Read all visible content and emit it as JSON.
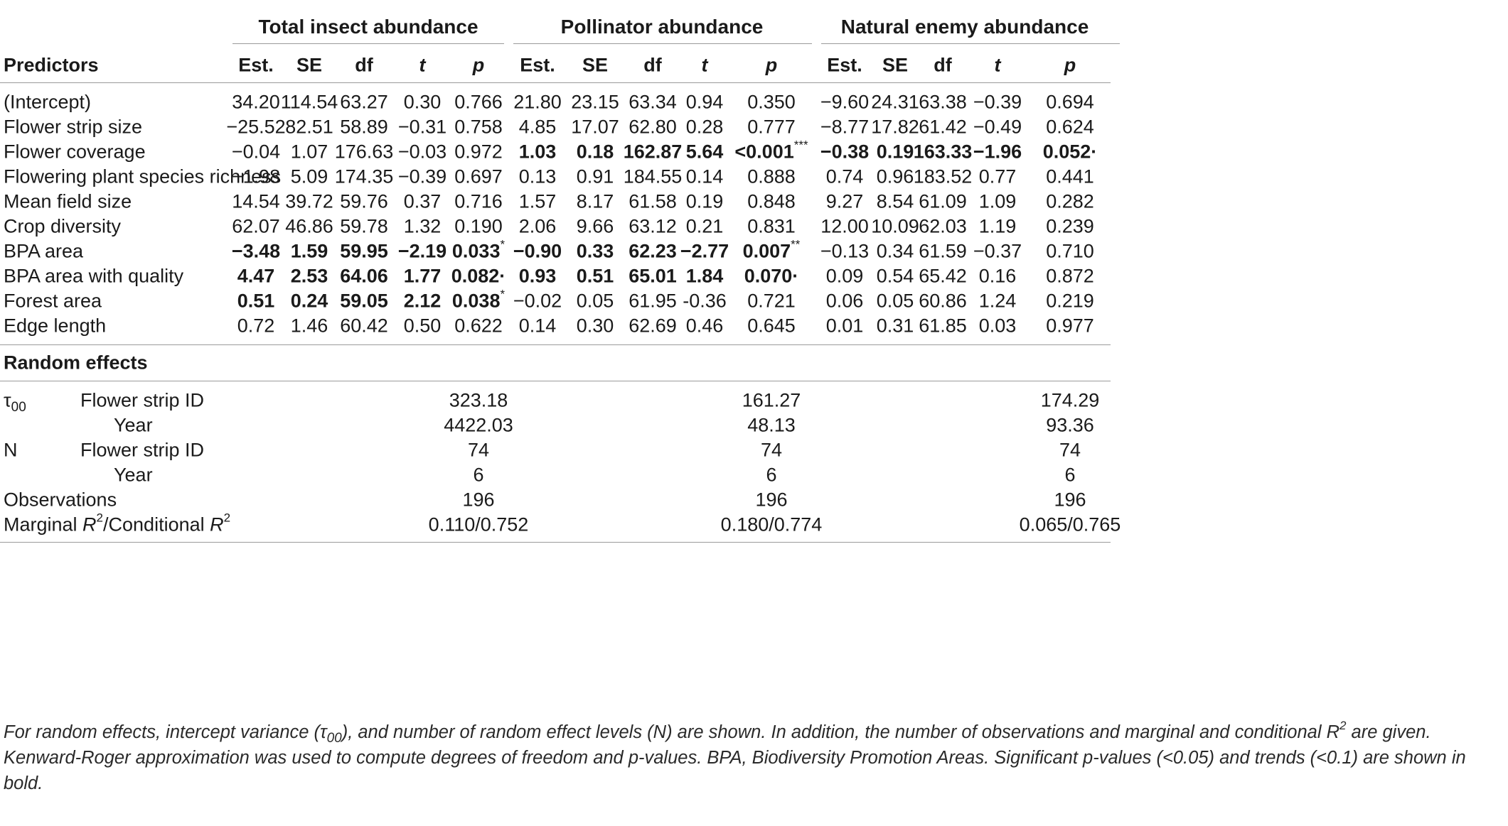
{
  "groups": [
    "Total insect abundance",
    "Pollinator abundance",
    "Natural enemy abundance"
  ],
  "header": {
    "predictors": "Predictors",
    "cols": [
      "Est.",
      "SE",
      "df",
      "t",
      "p",
      "Est.",
      "SE",
      "df",
      "t",
      "p",
      "Est.",
      "SE",
      "df",
      "t",
      "p"
    ]
  },
  "rows": [
    {
      "label": "(Intercept)",
      "cells": [
        {
          "v": "34.20"
        },
        {
          "v": "114.54"
        },
        {
          "v": "63.27"
        },
        {
          "v": "0.30"
        },
        {
          "v": "0.766"
        },
        {
          "v": "21.80"
        },
        {
          "v": "23.15"
        },
        {
          "v": "63.34"
        },
        {
          "v": "0.94"
        },
        {
          "v": "0.350"
        },
        {
          "v": "−9.60"
        },
        {
          "v": "24.31"
        },
        {
          "v": "63.38"
        },
        {
          "v": "−0.39"
        },
        {
          "v": "0.694"
        }
      ]
    },
    {
      "label": "Flower strip size",
      "cells": [
        {
          "v": "−25.52"
        },
        {
          "v": "82.51"
        },
        {
          "v": "58.89"
        },
        {
          "v": "−0.31"
        },
        {
          "v": "0.758"
        },
        {
          "v": "4.85"
        },
        {
          "v": "17.07"
        },
        {
          "v": "62.80"
        },
        {
          "v": "0.28"
        },
        {
          "v": "0.777"
        },
        {
          "v": "−8.77"
        },
        {
          "v": "17.82"
        },
        {
          "v": "61.42"
        },
        {
          "v": "−0.49"
        },
        {
          "v": "0.624"
        }
      ]
    },
    {
      "label": "Flower coverage",
      "cells": [
        {
          "v": "−0.04"
        },
        {
          "v": "1.07"
        },
        {
          "v": "176.63"
        },
        {
          "v": "−0.03"
        },
        {
          "v": "0.972"
        },
        {
          "v": "1.03",
          "b": true
        },
        {
          "v": "0.18",
          "b": true
        },
        {
          "v": "162.87",
          "b": true
        },
        {
          "v": "5.64",
          "b": true
        },
        {
          "v": "<0.001",
          "b": true,
          "sup": "***"
        },
        {
          "v": "−0.38",
          "b": true
        },
        {
          "v": "0.19",
          "b": true
        },
        {
          "v": "163.33",
          "b": true
        },
        {
          "v": "−1.96",
          "b": true
        },
        {
          "v": "0.052·",
          "b": true
        }
      ]
    },
    {
      "label": "Flowering plant species richness",
      "cells": [
        {
          "v": "−1.98"
        },
        {
          "v": "5.09"
        },
        {
          "v": "174.35"
        },
        {
          "v": "−0.39"
        },
        {
          "v": "0.697"
        },
        {
          "v": "0.13"
        },
        {
          "v": "0.91"
        },
        {
          "v": "184.55"
        },
        {
          "v": "0.14"
        },
        {
          "v": "0.888"
        },
        {
          "v": "0.74"
        },
        {
          "v": "0.96"
        },
        {
          "v": "183.52"
        },
        {
          "v": "0.77"
        },
        {
          "v": "0.441"
        }
      ]
    },
    {
      "label": "Mean field size",
      "cells": [
        {
          "v": "14.54"
        },
        {
          "v": "39.72"
        },
        {
          "v": "59.76"
        },
        {
          "v": "0.37"
        },
        {
          "v": "0.716"
        },
        {
          "v": "1.57"
        },
        {
          "v": "8.17"
        },
        {
          "v": "61.58"
        },
        {
          "v": "0.19"
        },
        {
          "v": "0.848"
        },
        {
          "v": "9.27"
        },
        {
          "v": "8.54"
        },
        {
          "v": "61.09"
        },
        {
          "v": "1.09"
        },
        {
          "v": "0.282"
        }
      ]
    },
    {
      "label": "Crop diversity",
      "cells": [
        {
          "v": "62.07"
        },
        {
          "v": "46.86"
        },
        {
          "v": "59.78"
        },
        {
          "v": "1.32"
        },
        {
          "v": "0.190"
        },
        {
          "v": "2.06"
        },
        {
          "v": "9.66"
        },
        {
          "v": "63.12"
        },
        {
          "v": "0.21"
        },
        {
          "v": "0.831"
        },
        {
          "v": "12.00"
        },
        {
          "v": "10.09"
        },
        {
          "v": "62.03"
        },
        {
          "v": "1.19"
        },
        {
          "v": "0.239"
        }
      ]
    },
    {
      "label": "BPA area",
      "cells": [
        {
          "v": "−3.48",
          "b": true
        },
        {
          "v": "1.59",
          "b": true
        },
        {
          "v": "59.95",
          "b": true
        },
        {
          "v": "−2.19",
          "b": true
        },
        {
          "v": "0.033",
          "b": true,
          "sup": "*"
        },
        {
          "v": "−0.90",
          "b": true
        },
        {
          "v": "0.33",
          "b": true
        },
        {
          "v": "62.23",
          "b": true
        },
        {
          "v": "−2.77",
          "b": true
        },
        {
          "v": "0.007",
          "b": true,
          "sup": "**"
        },
        {
          "v": "−0.13"
        },
        {
          "v": "0.34"
        },
        {
          "v": "61.59"
        },
        {
          "v": "−0.37"
        },
        {
          "v": "0.710"
        }
      ]
    },
    {
      "label": "BPA area with quality",
      "cells": [
        {
          "v": "4.47",
          "b": true
        },
        {
          "v": "2.53",
          "b": true
        },
        {
          "v": "64.06",
          "b": true
        },
        {
          "v": "1.77",
          "b": true
        },
        {
          "v": "0.082·",
          "b": true
        },
        {
          "v": "0.93",
          "b": true
        },
        {
          "v": "0.51",
          "b": true
        },
        {
          "v": "65.01",
          "b": true
        },
        {
          "v": "1.84",
          "b": true
        },
        {
          "v": "0.070·",
          "b": true
        },
        {
          "v": "0.09"
        },
        {
          "v": "0.54"
        },
        {
          "v": "65.42"
        },
        {
          "v": "0.16"
        },
        {
          "v": "0.872"
        }
      ]
    },
    {
      "label": "Forest area",
      "cells": [
        {
          "v": "0.51",
          "b": true
        },
        {
          "v": "0.24",
          "b": true
        },
        {
          "v": "59.05",
          "b": true
        },
        {
          "v": "2.12",
          "b": true
        },
        {
          "v": "0.038",
          "b": true,
          "sup": "*"
        },
        {
          "v": "−0.02"
        },
        {
          "v": "0.05"
        },
        {
          "v": "61.95"
        },
        {
          "v": "-0.36"
        },
        {
          "v": "0.721"
        },
        {
          "v": "0.06"
        },
        {
          "v": "0.05"
        },
        {
          "v": "60.86"
        },
        {
          "v": "1.24"
        },
        {
          "v": "0.219"
        }
      ]
    },
    {
      "label": "Edge length",
      "cells": [
        {
          "v": "0.72"
        },
        {
          "v": "1.46"
        },
        {
          "v": "60.42"
        },
        {
          "v": "0.50"
        },
        {
          "v": "0.622"
        },
        {
          "v": "0.14"
        },
        {
          "v": "0.30"
        },
        {
          "v": "62.69"
        },
        {
          "v": "0.46"
        },
        {
          "v": "0.645"
        },
        {
          "v": "0.01"
        },
        {
          "v": "0.31"
        },
        {
          "v": "61.85"
        },
        {
          "v": "0.03"
        },
        {
          "v": "0.977"
        }
      ]
    }
  ],
  "random_effects": {
    "title": "Random effects",
    "tau_base": "τ",
    "tau_sub": "00",
    "n_label": "N",
    "flower_strip_id": "Flower strip ID",
    "year": "Year",
    "tau_strip": [
      "323.18",
      "161.27",
      "174.29"
    ],
    "tau_year": [
      "4422.03",
      "48.13",
      "93.36"
    ],
    "n_strip": [
      "74",
      "74",
      "74"
    ],
    "n_year": [
      "6",
      "6",
      "6"
    ],
    "observations_label": "Observations",
    "observations": [
      "196",
      "196",
      "196"
    ],
    "r2_marginal": "Marginal ",
    "r2_conditional": "/Conditional ",
    "r2_symbol": "R",
    "r2_power": "2",
    "r2": [
      "0.110/0.752",
      "0.180/0.774",
      "0.065/0.765"
    ]
  },
  "footnote": {
    "part1": "For random effects, intercept variance (",
    "tau": "τ",
    "tau_sub": "00",
    "part2": "), and number of random effect levels (N) are shown. In addition, the number of observations and marginal and conditional ",
    "r": "R",
    "r_power": "2",
    "part3": " are given. Kenward-Roger approximation was used to compute degrees of freedom and p-values. BPA, Biodiversity Promotion Areas. Significant p-values (<0.05) and trends (<0.1) are shown in bold."
  }
}
